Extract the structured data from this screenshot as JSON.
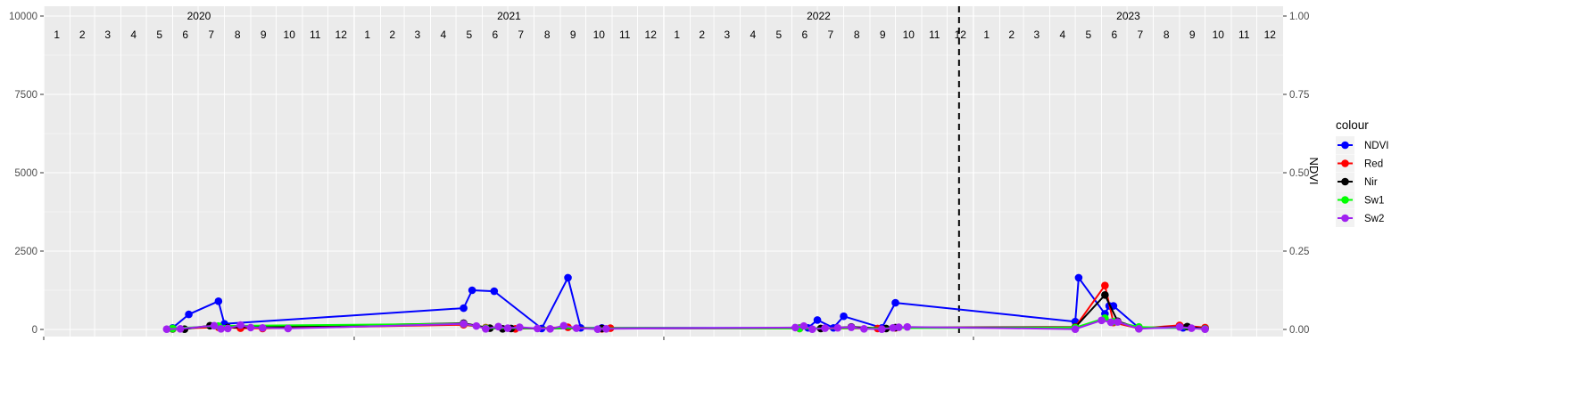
{
  "chart_data": {
    "type": "line",
    "title": "",
    "xlabel": "",
    "ylabel_left": "",
    "ylabel_right": "NDVI",
    "x_range": [
      "2020-01-01",
      "2024-01-01"
    ],
    "y_left": {
      "range": [
        0,
        10000
      ],
      "ticks": [
        0,
        2500,
        5000,
        7500,
        10000
      ],
      "tick_labels": [
        "0",
        "2500",
        "5000",
        "7500",
        "10000"
      ]
    },
    "y_right": {
      "range": [
        0,
        1
      ],
      "ticks": [
        0,
        0.25,
        0.5,
        0.75,
        1
      ],
      "tick_labels": [
        "0.00",
        "0.25",
        "0.50",
        "0.75",
        "1.00"
      ]
    },
    "year_labels": [
      "2020",
      "2021",
      "2022",
      "2023"
    ],
    "month_labels": [
      "1",
      "2",
      "3",
      "4",
      "5",
      "6",
      "7",
      "8",
      "9",
      "10",
      "11",
      "12"
    ],
    "vertical_line": {
      "date": "2022-12-15",
      "style": "dashed",
      "color": "#000000"
    },
    "grid": true,
    "legend": {
      "title": "colour",
      "position": "right",
      "entries": [
        "NDVI",
        "Red",
        "Nir",
        "Sw1",
        "Sw2"
      ]
    },
    "series": [
      {
        "name": "NDVI",
        "color": "#0000ff",
        "axis": "right",
        "points": [
          [
            "2020-06-01",
            0.005
          ],
          [
            "2020-06-20",
            0.048
          ],
          [
            "2020-07-25",
            0.09
          ],
          [
            "2020-08-01",
            0.018
          ],
          [
            "2021-05-10",
            0.068
          ],
          [
            "2021-05-20",
            0.125
          ],
          [
            "2021-06-15",
            0.122
          ],
          [
            "2021-08-10",
            0.003
          ],
          [
            "2021-09-10",
            0.165
          ],
          [
            "2021-09-25",
            0.005
          ],
          [
            "2021-10-20",
            0.005
          ],
          [
            "2022-06-20",
            0.005
          ],
          [
            "2022-07-01",
            0.03
          ],
          [
            "2022-07-20",
            0.005
          ],
          [
            "2022-08-01",
            0.042
          ],
          [
            "2022-09-15",
            0.005
          ],
          [
            "2022-10-01",
            0.085
          ],
          [
            "2023-05-01",
            0.025
          ],
          [
            "2023-05-05",
            0.165
          ],
          [
            "2023-06-05",
            0.05
          ],
          [
            "2023-06-10",
            0.075
          ],
          [
            "2023-06-15",
            0.075
          ],
          [
            "2023-07-15",
            0.005
          ],
          [
            "2023-09-05",
            0.005
          ],
          [
            "2023-10-01",
            0.005
          ]
        ]
      },
      {
        "name": "Red",
        "color": "#ff0000",
        "axis": "left",
        "points": [
          [
            "2020-06-01",
            20
          ],
          [
            "2020-07-25",
            70
          ],
          [
            "2020-08-20",
            40
          ],
          [
            "2020-09-15",
            30
          ],
          [
            "2021-05-10",
            150
          ],
          [
            "2021-06-05",
            60
          ],
          [
            "2021-07-10",
            20
          ],
          [
            "2021-09-10",
            70
          ],
          [
            "2021-10-20",
            20
          ],
          [
            "2021-10-30",
            40
          ],
          [
            "2022-06-10",
            30
          ],
          [
            "2022-09-10",
            30
          ],
          [
            "2022-10-01",
            50
          ],
          [
            "2023-05-01",
            80
          ],
          [
            "2023-06-05",
            1400
          ],
          [
            "2023-06-15",
            220
          ],
          [
            "2023-07-15",
            30
          ],
          [
            "2023-09-01",
            130
          ],
          [
            "2023-10-01",
            60
          ]
        ]
      },
      {
        "name": "Nir",
        "color": "#000000",
        "axis": "left",
        "points": [
          [
            "2020-06-01",
            20
          ],
          [
            "2020-06-15",
            10
          ],
          [
            "2020-07-15",
            120
          ],
          [
            "2020-08-05",
            60
          ],
          [
            "2021-05-10",
            200
          ],
          [
            "2021-06-10",
            40
          ],
          [
            "2021-06-25",
            20
          ],
          [
            "2021-07-05",
            30
          ],
          [
            "2021-10-20",
            30
          ],
          [
            "2022-06-10",
            40
          ],
          [
            "2022-07-05",
            30
          ],
          [
            "2022-08-10",
            80
          ],
          [
            "2022-09-20",
            30
          ],
          [
            "2022-10-01",
            60
          ],
          [
            "2023-05-01",
            70
          ],
          [
            "2023-06-05",
            1100
          ],
          [
            "2023-06-20",
            260
          ],
          [
            "2023-07-15",
            40
          ],
          [
            "2023-09-10",
            90
          ],
          [
            "2023-10-01",
            20
          ]
        ]
      },
      {
        "name": "Sw1",
        "color": "#00ff00",
        "axis": "left",
        "points": [
          [
            "2020-06-01",
            30
          ],
          [
            "2020-07-25",
            110
          ],
          [
            "2021-05-10",
            180
          ],
          [
            "2021-06-05",
            40
          ],
          [
            "2022-06-10",
            30
          ],
          [
            "2023-05-01",
            60
          ],
          [
            "2023-06-05",
            360
          ],
          [
            "2023-06-15",
            250
          ],
          [
            "2023-07-15",
            80
          ],
          [
            "2023-10-01",
            20
          ]
        ]
      },
      {
        "name": "Sw2",
        "color": "#a020f0",
        "axis": "left",
        "points": [
          [
            "2020-05-25",
            10
          ],
          [
            "2020-06-10",
            20
          ],
          [
            "2020-07-20",
            120
          ],
          [
            "2020-07-28",
            20
          ],
          [
            "2020-08-05",
            30
          ],
          [
            "2020-08-20",
            140
          ],
          [
            "2020-09-01",
            60
          ],
          [
            "2020-09-15",
            50
          ],
          [
            "2020-10-15",
            30
          ],
          [
            "2021-05-10",
            180
          ],
          [
            "2021-05-25",
            110
          ],
          [
            "2021-06-05",
            20
          ],
          [
            "2021-06-20",
            90
          ],
          [
            "2021-07-01",
            40
          ],
          [
            "2021-07-15",
            70
          ],
          [
            "2021-08-05",
            30
          ],
          [
            "2021-08-20",
            20
          ],
          [
            "2021-09-05",
            120
          ],
          [
            "2021-09-20",
            40
          ],
          [
            "2021-10-15",
            10
          ],
          [
            "2021-10-25",
            20
          ],
          [
            "2022-06-05",
            60
          ],
          [
            "2022-06-15",
            110
          ],
          [
            "2022-06-25",
            10
          ],
          [
            "2022-07-10",
            40
          ],
          [
            "2022-07-25",
            50
          ],
          [
            "2022-08-10",
            70
          ],
          [
            "2022-08-25",
            20
          ],
          [
            "2022-09-15",
            10
          ],
          [
            "2022-09-28",
            50
          ],
          [
            "2022-10-05",
            70
          ],
          [
            "2022-10-15",
            80
          ],
          [
            "2023-05-01",
            10
          ],
          [
            "2023-06-01",
            290
          ],
          [
            "2023-06-12",
            230
          ],
          [
            "2023-06-20",
            240
          ],
          [
            "2023-07-15",
            20
          ],
          [
            "2023-09-01",
            80
          ],
          [
            "2023-09-15",
            40
          ],
          [
            "2023-10-01",
            10
          ]
        ]
      }
    ]
  }
}
